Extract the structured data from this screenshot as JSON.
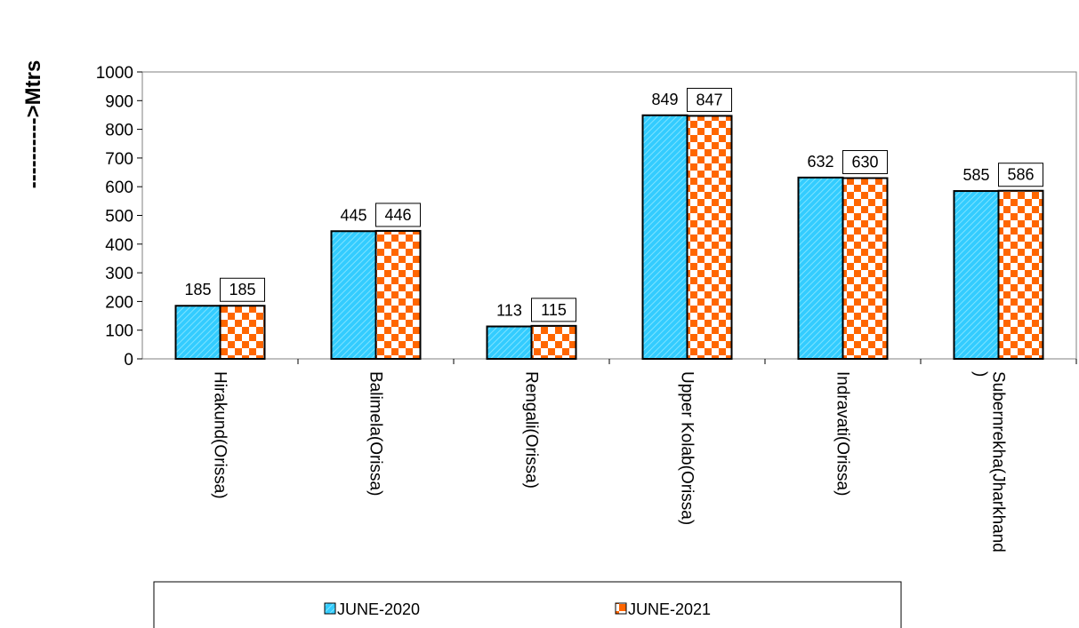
{
  "chart_data": {
    "type": "bar",
    "title": "",
    "xlabel": "",
    "ylabel": "---------->Mtrs",
    "ylim": [
      0,
      1000
    ],
    "ytick_step": 100,
    "categories": [
      [
        "Hirakund(Orissa)"
      ],
      [
        "Balimela(Orissa)"
      ],
      [
        "Rengali(Orissa)"
      ],
      [
        "Upper Kolab(Orissa)"
      ],
      [
        "Indravati(Orissa)"
      ],
      [
        "Subernrekha(Jharkhand",
        ")"
      ]
    ],
    "series": [
      {
        "name": "JUNE-2020",
        "values": [
          185,
          445,
          113,
          849,
          632,
          585
        ],
        "color": "#33ccff",
        "pattern": "diagonal-stripes",
        "labels_boxed": false
      },
      {
        "name": "JUNE-2021",
        "values": [
          185,
          446,
          115,
          847,
          630,
          586
        ],
        "color": "#ff6600",
        "pattern": "checkerboard",
        "labels_boxed": true
      }
    ],
    "legend": {
      "placement": "bottom"
    },
    "grid": false
  }
}
